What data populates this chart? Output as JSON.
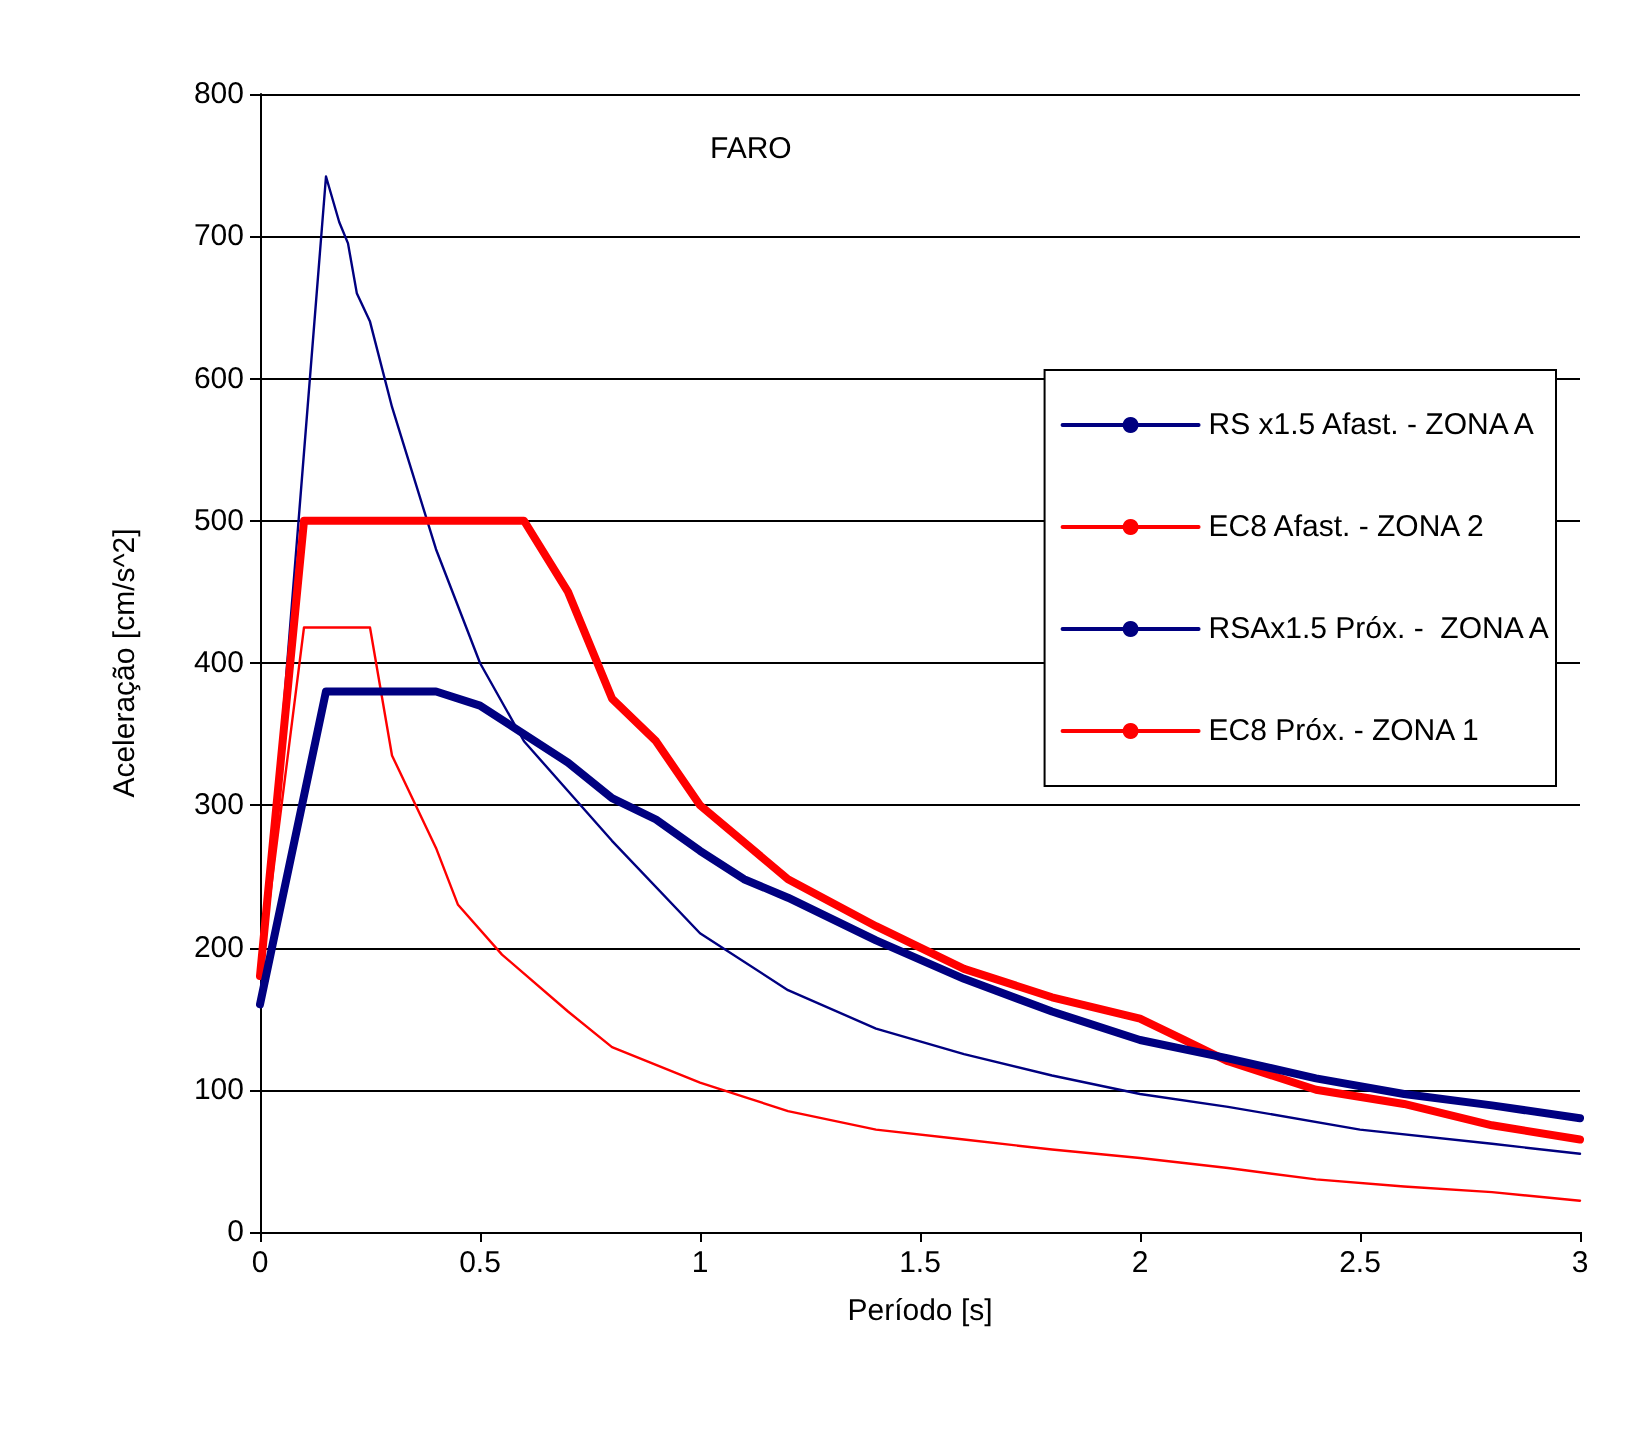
{
  "chart_data": {
    "type": "line",
    "title": "FARO",
    "xlabel": "Período [s]",
    "ylabel": "Aceleração [cm/s^2]",
    "xlim": [
      0,
      3
    ],
    "xticks": [
      0,
      0.5,
      1,
      1.5,
      2,
      2.5,
      3
    ],
    "ylim": [
      0,
      800
    ],
    "yticks": [
      0,
      100,
      200,
      300,
      400,
      500,
      600,
      700,
      800
    ],
    "grid": "y",
    "legend": "right",
    "marker": "none",
    "line_style": "solid",
    "series": [
      {
        "name": "RS x1.5 Afast. - ZONA A",
        "color": "#000080",
        "x": [
          0,
          0.15,
          0.4,
          0.5,
          0.6,
          0.7,
          0.8,
          0.9,
          1.0,
          1.1,
          1.2,
          1.4,
          1.6,
          1.8,
          2.0,
          2.2,
          2.4,
          2.6,
          2.8,
          3.0
        ],
        "values": [
          160,
          380,
          380,
          370,
          350,
          330,
          305,
          290,
          268,
          248,
          235,
          205,
          178,
          155,
          135,
          122,
          108,
          97,
          89,
          80
        ]
      },
      {
        "name": "EC8 Afast. - ZONA 2",
        "color": "#ff0000",
        "x": [
          0,
          0.1,
          0.6,
          0.7,
          0.8,
          0.9,
          1.0,
          1.2,
          1.4,
          1.6,
          1.8,
          2.0,
          2.1,
          2.2,
          2.4,
          2.6,
          2.8,
          3.0
        ],
        "values": [
          180,
          500,
          500,
          450,
          375,
          345,
          300,
          248,
          215,
          185,
          165,
          150,
          135,
          120,
          100,
          90,
          75,
          65
        ]
      },
      {
        "name": "RSAx1.5 Próx. -  ZONA A",
        "color": "#000080",
        "x": [
          0,
          0.15,
          0.18,
          0.2,
          0.22,
          0.25,
          0.3,
          0.4,
          0.5,
          0.6,
          0.7,
          0.8,
          1.0,
          1.2,
          1.4,
          1.6,
          1.8,
          2.0,
          2.2,
          2.5,
          2.8,
          3.0
        ],
        "values": [
          160,
          742,
          710,
          695,
          660,
          640,
          580,
          480,
          400,
          345,
          310,
          275,
          210,
          170,
          143,
          125,
          110,
          97,
          88,
          72,
          62,
          55
        ]
      },
      {
        "name": "EC8 Próx. - ZONA 1",
        "color": "#ff0000",
        "x": [
          0,
          0.1,
          0.25,
          0.3,
          0.4,
          0.45,
          0.55,
          0.7,
          0.8,
          1.0,
          1.1,
          1.2,
          1.4,
          1.6,
          1.8,
          2.0,
          2.2,
          2.4,
          2.6,
          2.8,
          3.0
        ],
        "values": [
          180,
          425,
          425,
          335,
          270,
          230,
          195,
          155,
          130,
          105,
          95,
          85,
          72,
          65,
          58,
          52,
          45,
          37,
          32,
          28,
          22
        ]
      }
    ]
  }
}
